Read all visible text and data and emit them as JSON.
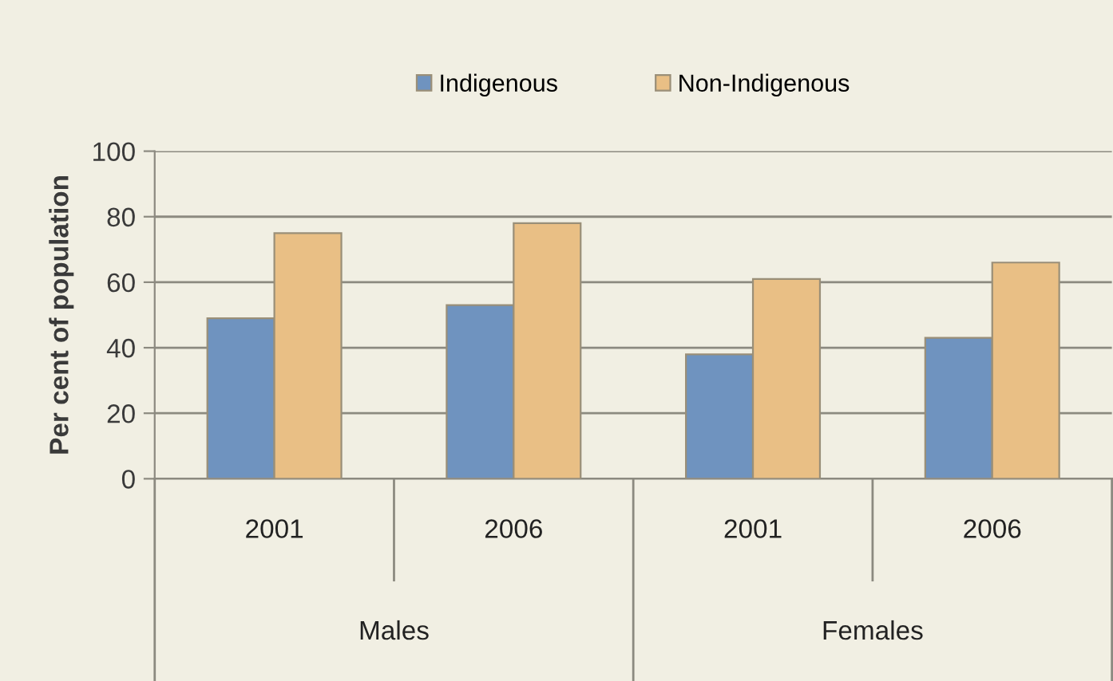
{
  "chart_data": {
    "type": "bar",
    "ylabel": "Per cent of population",
    "categories": [
      "2001",
      "2006",
      "2001",
      "2006"
    ],
    "series": [
      {
        "name": "Indigenous",
        "color": "#6f93bf",
        "values": [
          49,
          53,
          38,
          43
        ]
      },
      {
        "name": "Non-Indigenous",
        "color": "#e9bf85",
        "values": [
          75,
          78,
          61,
          66
        ]
      }
    ],
    "annotations": [
      "Males",
      "Females"
    ],
    "ylim": [
      0,
      100
    ],
    "yticks": [
      0,
      20,
      40,
      60,
      80,
      100
    ],
    "grid": "y",
    "legend": "top"
  }
}
